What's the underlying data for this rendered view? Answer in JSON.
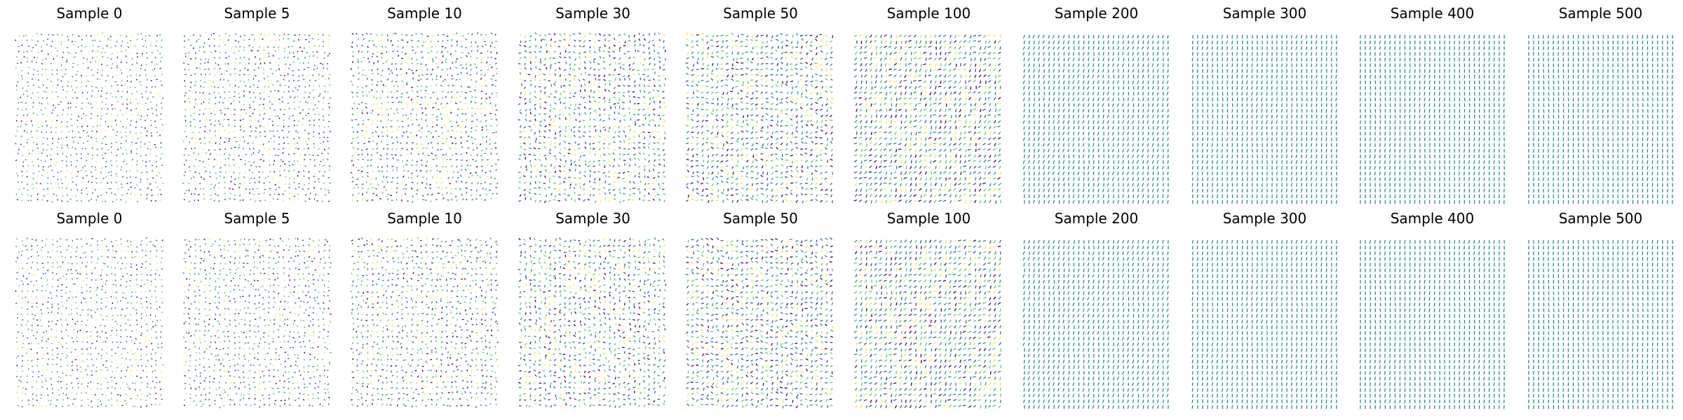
{
  "chart_data": {
    "type": "scatter",
    "description_kind": "small-multiples vector fields",
    "rows": [
      {
        "panels": [
          {
            "title": "Sample 0",
            "sample": 0
          },
          {
            "title": "Sample 5",
            "sample": 5
          },
          {
            "title": "Sample 10",
            "sample": 10
          },
          {
            "title": "Sample 30",
            "sample": 30
          },
          {
            "title": "Sample 50",
            "sample": 50
          },
          {
            "title": "Sample 100",
            "sample": 100
          },
          {
            "title": "Sample 200",
            "sample": 200
          },
          {
            "title": "Sample 300",
            "sample": 300
          },
          {
            "title": "Sample 400",
            "sample": 400
          },
          {
            "title": "Sample 500",
            "sample": 500
          }
        ]
      },
      {
        "panels": [
          {
            "title": "Sample 0",
            "sample": 0
          },
          {
            "title": "Sample 5",
            "sample": 5
          },
          {
            "title": "Sample 10",
            "sample": 10
          },
          {
            "title": "Sample 30",
            "sample": 30
          },
          {
            "title": "Sample 50",
            "sample": 50
          },
          {
            "title": "Sample 100",
            "sample": 100
          },
          {
            "title": "Sample 200",
            "sample": 200
          },
          {
            "title": "Sample 300",
            "sample": 300
          },
          {
            "title": "Sample 400",
            "sample": 400
          },
          {
            "title": "Sample 500",
            "sample": 500
          }
        ]
      }
    ],
    "grid": false,
    "axes_visible": false,
    "colormap": [
      "#440154",
      "#3b528b",
      "#21918c",
      "#5ec962",
      "#fde725"
    ]
  }
}
